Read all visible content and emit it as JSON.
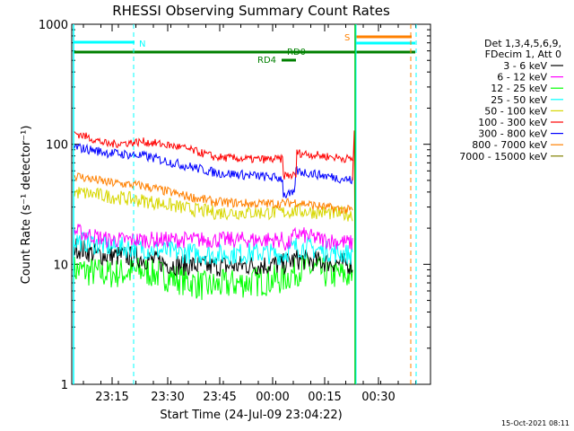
{
  "chart_data": {
    "type": "line",
    "title": "RHESSI Observing Summary Count Rates",
    "xlabel": "Start Time (24-Jul-09 23:04:22)",
    "ylabel": "Count Rate (s⁻¹ detector⁻¹)",
    "yscale": "log",
    "ylim": [
      1,
      1000
    ],
    "xlim_minutes": [
      -1,
      67
    ],
    "y_ticks": [
      "1",
      "10",
      "100",
      "1000"
    ],
    "x_ticks": [
      {
        "label": "23:15",
        "minute": 11
      },
      {
        "label": "23:30",
        "minute": 26
      },
      {
        "label": "23:45",
        "minute": 41
      },
      {
        "label": "00:00",
        "minute": 56
      },
      {
        "label": "00:15",
        "minute": 71
      },
      {
        "label": "00:30",
        "minute": 86
      }
    ],
    "legend_header": [
      "Det 1,3,4,5,6,9,",
      "FDecim 1, Att 0"
    ],
    "series": [
      {
        "name": "3 - 6 keV",
        "color": "#000000",
        "values": []
      },
      {
        "name": "6 - 12 keV",
        "color": "#ff00ff",
        "values": []
      },
      {
        "name": "12 - 25 keV",
        "color": "#00ff00",
        "values": []
      },
      {
        "name": "25 - 50 keV",
        "color": "#00ffff",
        "values": []
      },
      {
        "name": "50 - 100 keV",
        "color": "#d7d700",
        "values": []
      },
      {
        "name": "100 - 300 keV",
        "color": "#ff0000",
        "values": []
      },
      {
        "name": "300 - 800 keV",
        "color": "#0000ff",
        "values": []
      },
      {
        "name": "800 - 7000 keV",
        "color": "#ff8000",
        "values": []
      },
      {
        "name": "7000 - 15000 keV",
        "color": "#808000",
        "values": []
      }
    ],
    "annotations": {
      "night_label": "N",
      "saa_label": "S",
      "rd0_label": "RD0",
      "rd4_label": "RD4"
    },
    "footer": "15-Oct-2021 08:11"
  }
}
